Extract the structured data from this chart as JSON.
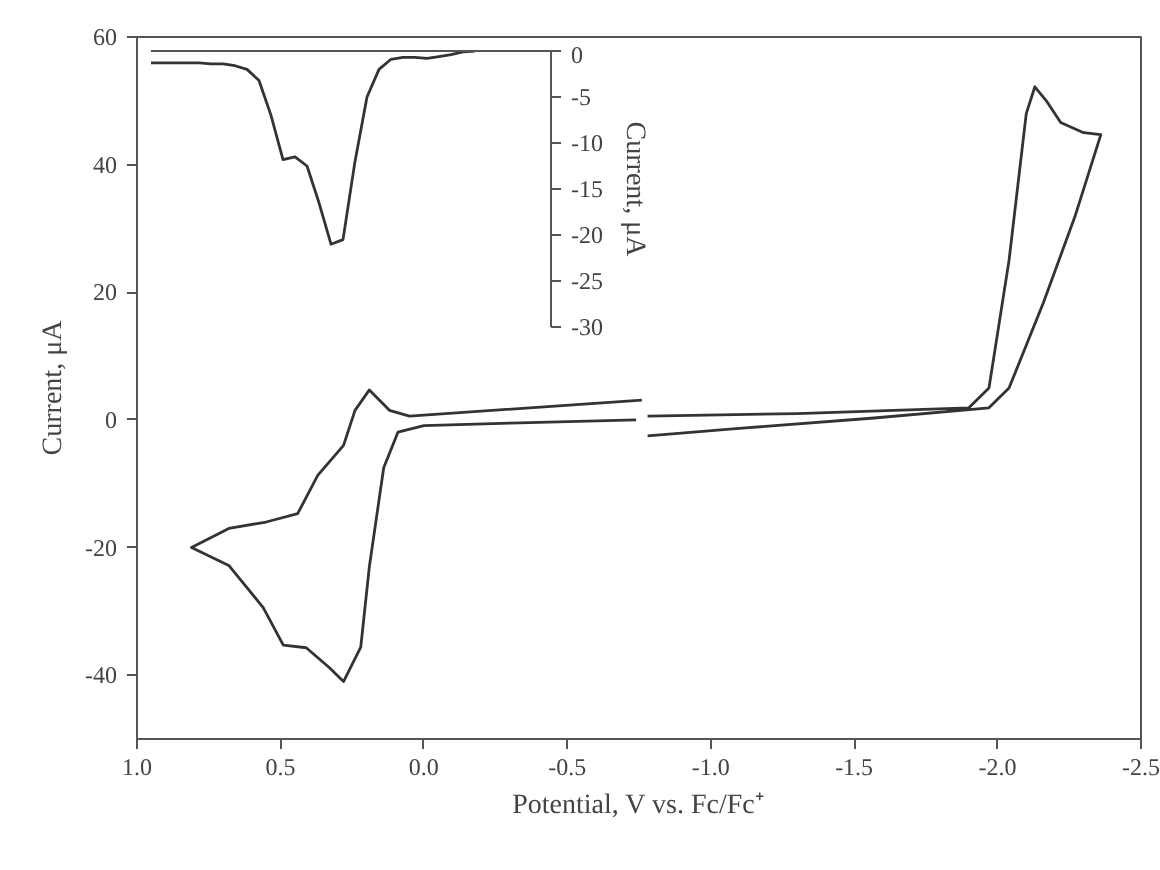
{
  "chart_data": [
    {
      "type": "line",
      "xlabel": "Potential, V vs. Fc/Fc⁺",
      "ylabel": "Current, μA",
      "xlim": [
        1.0,
        -2.5
      ],
      "ylim": [
        -50,
        60
      ],
      "xticks": [
        {
          "value": 1.0,
          "label": "1.0"
        },
        {
          "value": 0.5,
          "label": "0.5"
        },
        {
          "value": 0.0,
          "label": "0.0"
        },
        {
          "value": -0.5,
          "label": "-0.5"
        },
        {
          "value": -1.0,
          "label": "-1.0"
        },
        {
          "value": -1.5,
          "label": "-1.5"
        },
        {
          "value": -2.0,
          "label": "-2.0"
        },
        {
          "value": -2.5,
          "label": "-2.5"
        }
      ],
      "yticks": [
        -40,
        -20,
        0,
        20,
        40,
        60
      ],
      "grid": false,
      "series": [
        {
          "color": "#333333",
          "x": [
            -0.76,
            0.05,
            0.12,
            0.19,
            0.24,
            0.28,
            0.37,
            0.44,
            0.55,
            0.68,
            0.81,
            0.68,
            0.56,
            0.49,
            0.41,
            0.33,
            0.28,
            0.22,
            0.19,
            0.14,
            0.09,
            0.0,
            -0.3,
            -0.74
          ],
          "values": [
            3.1,
            0.6,
            1.5,
            4.7,
            1.5,
            -4,
            -8.7,
            -14.7,
            -16,
            -17,
            -20,
            -22.8,
            -29.4,
            -35.3,
            -35.7,
            -38.8,
            -41,
            -35.6,
            -23,
            -7.5,
            -1.9,
            -0.9,
            -0.5,
            0
          ]
        },
        {
          "color": "#333333",
          "x": [
            -0.78,
            -1.3,
            -1.9,
            -1.97,
            -2.04,
            -2.1,
            -2.13,
            -2.17,
            -2.22,
            -2.3,
            -2.36,
            -2.27,
            -2.16,
            -2.04,
            -1.97,
            -1.57,
            -1.11,
            -0.78
          ],
          "values": [
            0.6,
            1,
            1.9,
            5,
            25,
            48,
            52.2,
            50,
            46.6,
            45,
            44.7,
            31.9,
            18.4,
            5,
            1.9,
            0.3,
            -1.3,
            -2.5
          ]
        }
      ]
    },
    {
      "type": "line",
      "ylabel": "Current, μA",
      "ylim": [
        -30,
        0
      ],
      "yticks": [
        -30,
        -25,
        -20,
        -15,
        -10,
        -5,
        0
      ],
      "tick_labels": "y",
      "grid": false,
      "categories": [
        null,
        null,
        null,
        null,
        null,
        null,
        null,
        null,
        null,
        null,
        null,
        null,
        null,
        null,
        null,
        null,
        null,
        null,
        null,
        null,
        null,
        null,
        null,
        null,
        null,
        null,
        null,
        null
      ],
      "series": [
        {
          "color": "#333333",
          "values": [
            -1.3,
            -1.3,
            -1.3,
            -1.3,
            -1.3,
            -1.4,
            -1.4,
            -1.6,
            -2.0,
            -3.2,
            -7,
            -11.8,
            -11.5,
            -12.5,
            -16.5,
            -21,
            -20.5,
            -12,
            -5,
            -2,
            -0.9,
            -0.7,
            -0.7,
            -0.8,
            -0.6,
            -0.4,
            -0.1,
            0
          ]
        }
      ]
    }
  ]
}
